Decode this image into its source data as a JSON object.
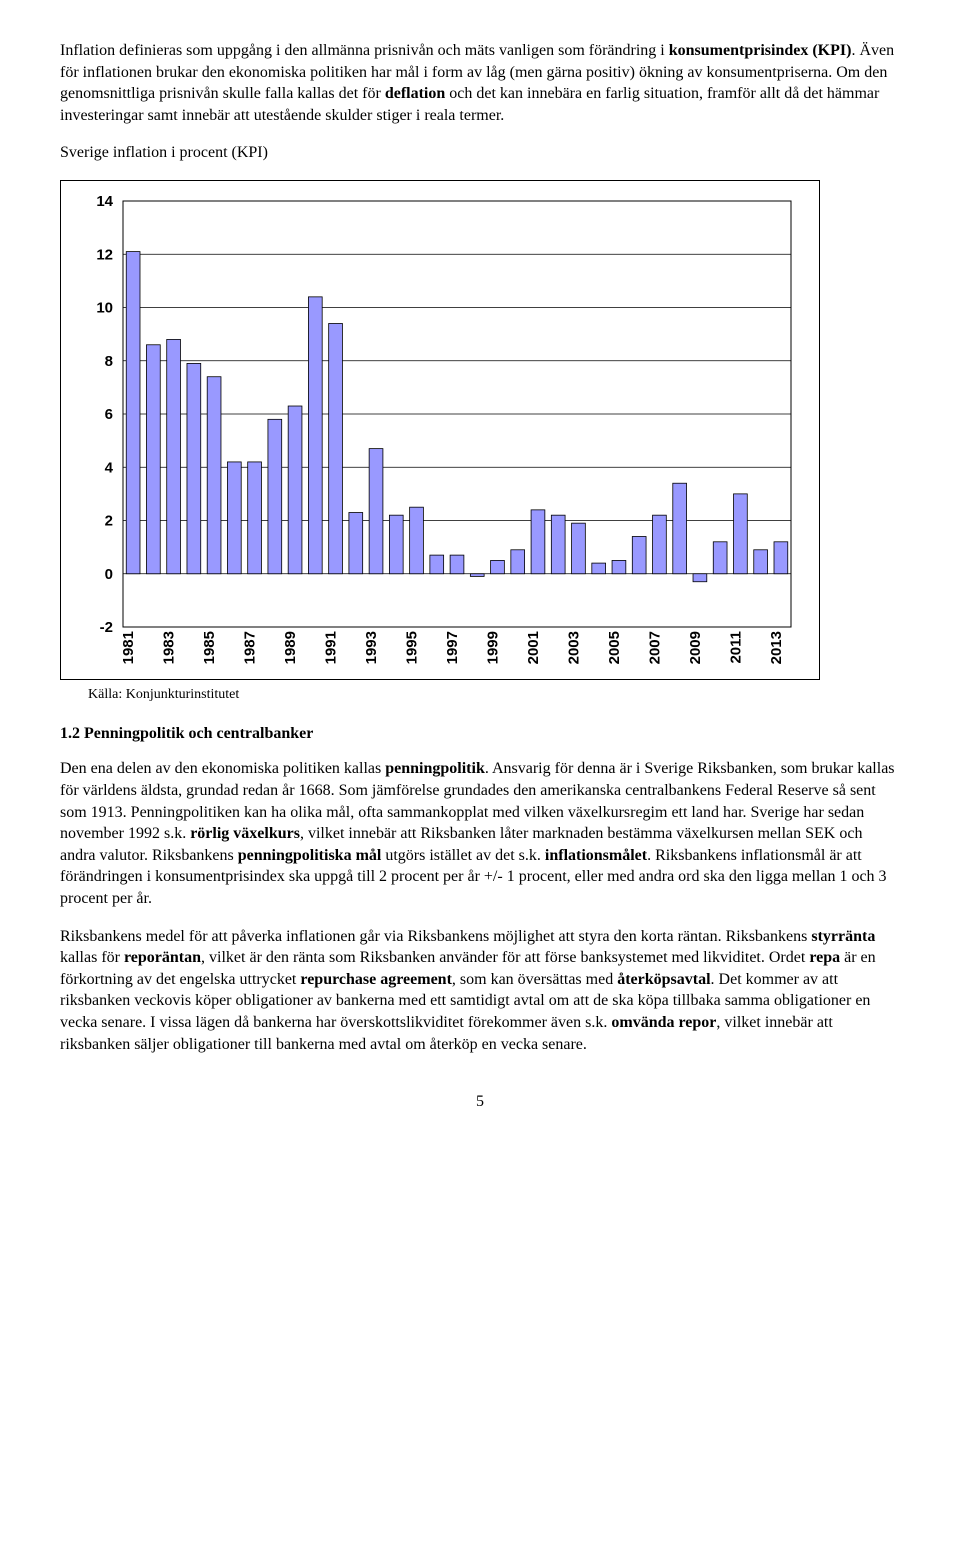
{
  "para1_a": "Inflation definieras som uppgång i den allmänna prisnivån och mäts vanligen som förändring i ",
  "para1_b": "konsumentprisindex (KPI)",
  "para1_c": ". Även för inflationen brukar den ekonomiska politiken har mål i form av låg (men gärna positiv) ökning av konsumentpriserna. Om den genomsnittliga prisnivån skulle falla kallas det för ",
  "para1_d": "deflation",
  "para1_e": " och det kan innebära en farlig situation, framför allt då det hämmar investeringar samt innebär att utestående skulder stiger i reala termer.",
  "chart_title": "Sverige inflation i procent (KPI)",
  "chart": {
    "ylim": [
      -2,
      14
    ],
    "ytick_step": 2,
    "background_color": "#ffffff",
    "grid_color": "#000000",
    "border_color": "#000000",
    "bar_fill": "#9999ff",
    "bar_stroke": "#000000",
    "axis_fontsize": 15,
    "bar_width": 0.68,
    "years": [
      "1981",
      "1982",
      "1983",
      "1984",
      "1985",
      "1986",
      "1987",
      "1988",
      "1989",
      "1990",
      "1991",
      "1992",
      "1993",
      "1994",
      "1995",
      "1996",
      "1997",
      "1998",
      "1999",
      "2000",
      "2001",
      "2002",
      "2003",
      "2004",
      "2005",
      "2006",
      "2007",
      "2008",
      "2009",
      "2010",
      "2011",
      "2012",
      "2013"
    ],
    "x_labels": [
      "1981",
      "1983",
      "1985",
      "1987",
      "1989",
      "1991",
      "1993",
      "1995",
      "1997",
      "1999",
      "2001",
      "2003",
      "2005",
      "2007",
      "2009",
      "2011",
      "2013"
    ],
    "values": [
      12.1,
      8.6,
      8.8,
      7.9,
      7.4,
      4.2,
      4.2,
      5.8,
      6.3,
      10.4,
      9.4,
      2.3,
      4.7,
      2.2,
      2.5,
      0.7,
      0.7,
      -0.1,
      0.5,
      0.9,
      2.4,
      2.2,
      1.9,
      0.4,
      0.5,
      1.4,
      2.2,
      3.4,
      -0.3,
      1.2,
      3.0,
      0.9,
      1.2
    ]
  },
  "source": "Källa: Konjunkturinstitutet",
  "section_heading": "1.2 Penningpolitik och centralbanker",
  "para2_a": "Den ena delen av den ekonomiska politiken kallas ",
  "para2_b": "penningpolitik",
  "para2_c": ". Ansvarig för denna är i Sverige Riksbanken, som brukar kallas för världens äldsta, grundad redan år 1668. Som jämförelse grundades den amerikanska centralbankens Federal Reserve så sent som 1913. Penningpolitiken kan ha olika mål, ofta sammankopplat med vilken växelkursregim ett land har. Sverige har sedan november 1992 s.k. ",
  "para2_d": "rörlig växelkurs",
  "para2_e": ", vilket innebär att Riksbanken låter marknaden bestämma växelkursen mellan SEK och andra valutor. Riksbankens ",
  "para2_f": "penningpolitiska mål",
  "para2_g": " utgörs istället av det s.k. ",
  "para2_h": "inflationsmålet",
  "para2_i": ". Riksbankens inflationsmål är att förändringen i konsumentprisindex ska uppgå till 2 procent per år +/- 1 procent, eller med andra ord ska den ligga mellan 1 och 3 procent per år.",
  "para3_a": "Riksbankens medel för att påverka inflationen går via Riksbankens möjlighet att styra den korta räntan. Riksbankens ",
  "para3_b": "styrränta",
  "para3_c": " kallas för ",
  "para3_d": "reporäntan",
  "para3_e": ", vilket är den ränta som Riksbanken använder för att förse banksystemet med likviditet. Ordet ",
  "para3_f": "repa",
  "para3_g": " är en förkortning av det engelska uttrycket ",
  "para3_h": "repurchase agreement",
  "para3_i": ", som kan översättas med ",
  "para3_j": "återköpsavtal",
  "para3_k": ". Det kommer av att riksbanken veckovis köper obligationer av bankerna med ett samtidigt avtal om att de ska köpa tillbaka samma obligationer en vecka senare. I vissa lägen då bankerna har överskottslikviditet förekommer även s.k. ",
  "para3_l": "omvända repor",
  "para3_m": ", vilket innebär att riksbanken säljer obligationer till bankerna med avtal om återköp en vecka senare.",
  "page_number": "5"
}
